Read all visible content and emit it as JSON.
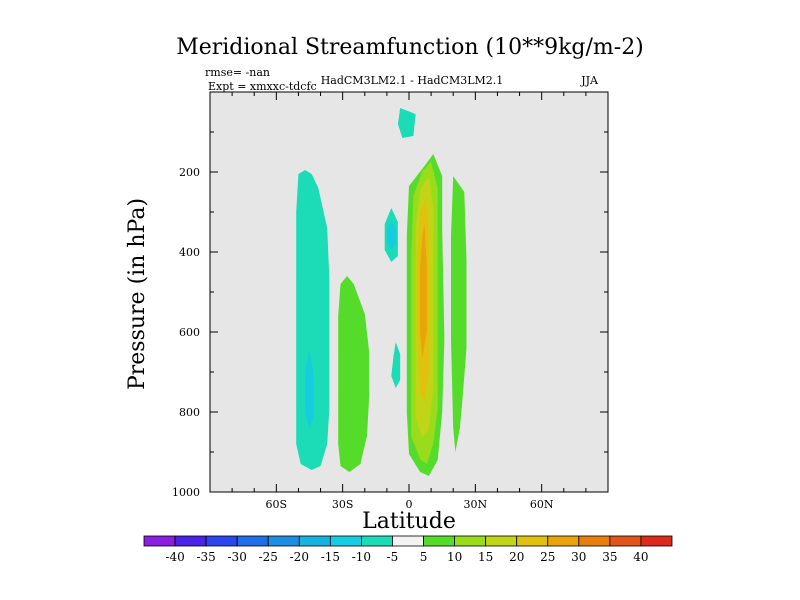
{
  "chart_data": {
    "type": "heatmap",
    "title": "Meridional Streamfunction (10**9kg/m-2)",
    "stats": {
      "rmse": "rmse= -nan",
      "expt": "Expt = xmxxc-tdcfc"
    },
    "subtitle_center": "HadCM3LM2.1 - HadCM3LM2.1",
    "season": "JJA",
    "xlabel": "Latitude",
    "ylabel": "Pressure (in hPa)",
    "xlim": [
      -90,
      90
    ],
    "ylim": [
      1000,
      0
    ],
    "x_ticks": [
      {
        "value": -60,
        "label": "60S"
      },
      {
        "value": -30,
        "label": "30S"
      },
      {
        "value": 0,
        "label": "0"
      },
      {
        "value": 30,
        "label": "30N"
      },
      {
        "value": 60,
        "label": "60N"
      }
    ],
    "y_ticks": [
      {
        "value": 200,
        "label": "200"
      },
      {
        "value": 400,
        "label": "400"
      },
      {
        "value": 600,
        "label": "600"
      },
      {
        "value": 800,
        "label": "800"
      },
      {
        "value": 1000,
        "label": "1000"
      }
    ],
    "background_color": "#e6e6e6",
    "colorbar": {
      "levels": [
        -40,
        -35,
        -30,
        -25,
        -20,
        -15,
        -10,
        -5,
        5,
        10,
        15,
        20,
        25,
        30,
        35,
        40
      ],
      "labels": [
        "-40",
        "-35",
        "-30",
        "-25",
        "-20",
        "-15",
        "-10",
        "-5",
        "5",
        "10",
        "15",
        "20",
        "25",
        "30",
        "35",
        "40"
      ],
      "colors": [
        "#8a1fe0",
        "#4a22e8",
        "#2c46ee",
        "#1f6fe6",
        "#1e8fe0",
        "#18b2e0",
        "#16cce0",
        "#1cdcb8",
        "#f2f2f2",
        "#55dc2a",
        "#98dc1c",
        "#c2d416",
        "#e0c20e",
        "#e8a40a",
        "#e87e0e",
        "#e0561a",
        "#dc2a1c"
      ]
    },
    "regions": [
      {
        "band": "-5 to -10",
        "color": "#1cdcb8",
        "outline": [
          [
            -44,
            205
          ],
          [
            -41,
            240
          ],
          [
            -37,
            340
          ],
          [
            -36,
            470
          ],
          [
            -36,
            600
          ],
          [
            -36,
            790
          ],
          [
            -37,
            880
          ],
          [
            -40,
            935
          ],
          [
            -44,
            945
          ],
          [
            -49,
            930
          ],
          [
            -51,
            880
          ],
          [
            -51,
            700
          ],
          [
            -51,
            480
          ],
          [
            -51,
            300
          ],
          [
            -50,
            205
          ],
          [
            -47,
            195
          ]
        ]
      },
      {
        "band": "-10 to -15",
        "color": "#16cce0",
        "outline": [
          [
            -45,
            640
          ],
          [
            -43,
            720
          ],
          [
            -43,
            810
          ],
          [
            -45,
            840
          ],
          [
            -47,
            800
          ],
          [
            -47,
            700
          ]
        ]
      },
      {
        "band": "5 to 10",
        "color": "#55dc2a",
        "outline": [
          [
            -28,
            460
          ],
          [
            -25,
            480
          ],
          [
            -20,
            555
          ],
          [
            -18,
            650
          ],
          [
            -18,
            760
          ],
          [
            -19,
            860
          ],
          [
            -22,
            930
          ],
          [
            -27,
            950
          ],
          [
            -31,
            935
          ],
          [
            -32,
            880
          ],
          [
            -32,
            700
          ],
          [
            -32,
            560
          ],
          [
            -31,
            480
          ]
        ]
      },
      {
        "band": "-5 to -10",
        "color": "#1cdcb8",
        "outline": [
          [
            -8,
            290
          ],
          [
            -5,
            325
          ],
          [
            -5,
            410
          ],
          [
            -8,
            425
          ],
          [
            -11,
            395
          ],
          [
            -11,
            330
          ]
        ]
      },
      {
        "band": "-10 to -15",
        "color": "#16cce0",
        "outline": [
          [
            -8,
            320
          ],
          [
            -6,
            340
          ],
          [
            -6,
            380
          ],
          [
            -8,
            395
          ],
          [
            -10,
            375
          ],
          [
            -10,
            345
          ]
        ]
      },
      {
        "band": "-5 to -10",
        "color": "#1cdcb8",
        "outline": [
          [
            -4,
            40
          ],
          [
            3,
            55
          ],
          [
            2,
            110
          ],
          [
            -3,
            115
          ],
          [
            -5,
            80
          ]
        ]
      },
      {
        "band": "-5 to -10",
        "color": "#1cdcb8",
        "outline": [
          [
            -6,
            625
          ],
          [
            -4,
            655
          ],
          [
            -4,
            720
          ],
          [
            -6,
            740
          ],
          [
            -8,
            710
          ],
          [
            -7,
            660
          ]
        ]
      },
      {
        "band": "5 to 10",
        "color": "#55dc2a",
        "outline": [
          [
            11,
            155
          ],
          [
            15,
            210
          ],
          [
            15,
            340
          ],
          [
            16,
            620
          ],
          [
            15,
            800
          ],
          [
            13,
            920
          ],
          [
            9,
            960
          ],
          [
            5,
            950
          ],
          [
            0,
            905
          ],
          [
            -1,
            800
          ],
          [
            -1,
            620
          ],
          [
            -1,
            360
          ],
          [
            0,
            235
          ],
          [
            7,
            185
          ]
        ]
      },
      {
        "band": "10 to 15",
        "color": "#98dc1c",
        "outline": [
          [
            10,
            175
          ],
          [
            13,
            240
          ],
          [
            13,
            540
          ],
          [
            13,
            790
          ],
          [
            11,
            880
          ],
          [
            8,
            930
          ],
          [
            5,
            918
          ],
          [
            1,
            860
          ],
          [
            1,
            680
          ],
          [
            1,
            420
          ],
          [
            2,
            260
          ],
          [
            6,
            198
          ]
        ]
      },
      {
        "band": "15 to 20",
        "color": "#c2d416",
        "outline": [
          [
            9,
            210
          ],
          [
            11,
            290
          ],
          [
            11,
            560
          ],
          [
            11,
            740
          ],
          [
            9,
            840
          ],
          [
            6,
            865
          ],
          [
            3,
            815
          ],
          [
            3,
            560
          ],
          [
            3,
            340
          ],
          [
            5,
            245
          ]
        ]
      },
      {
        "band": "20 to 25",
        "color": "#e0c20e",
        "outline": [
          [
            8,
            265
          ],
          [
            9,
            360
          ],
          [
            9,
            560
          ],
          [
            9,
            710
          ],
          [
            7,
            770
          ],
          [
            5,
            755
          ],
          [
            4,
            610
          ],
          [
            4,
            410
          ],
          [
            5,
            300
          ]
        ]
      },
      {
        "band": "25 to 30",
        "color": "#e8a40a",
        "outline": [
          [
            7,
            330
          ],
          [
            8,
            430
          ],
          [
            8,
            600
          ],
          [
            6,
            665
          ],
          [
            5,
            600
          ],
          [
            5,
            440
          ],
          [
            6,
            360
          ]
        ]
      },
      {
        "band": "5 to 10",
        "color": "#55dc2a",
        "outline": [
          [
            20,
            210
          ],
          [
            25,
            250
          ],
          [
            26,
            420
          ],
          [
            26,
            640
          ],
          [
            24,
            780
          ],
          [
            23,
            840
          ],
          [
            21,
            900
          ],
          [
            20,
            840
          ],
          [
            19,
            620
          ],
          [
            19,
            360
          ]
        ]
      }
    ]
  }
}
